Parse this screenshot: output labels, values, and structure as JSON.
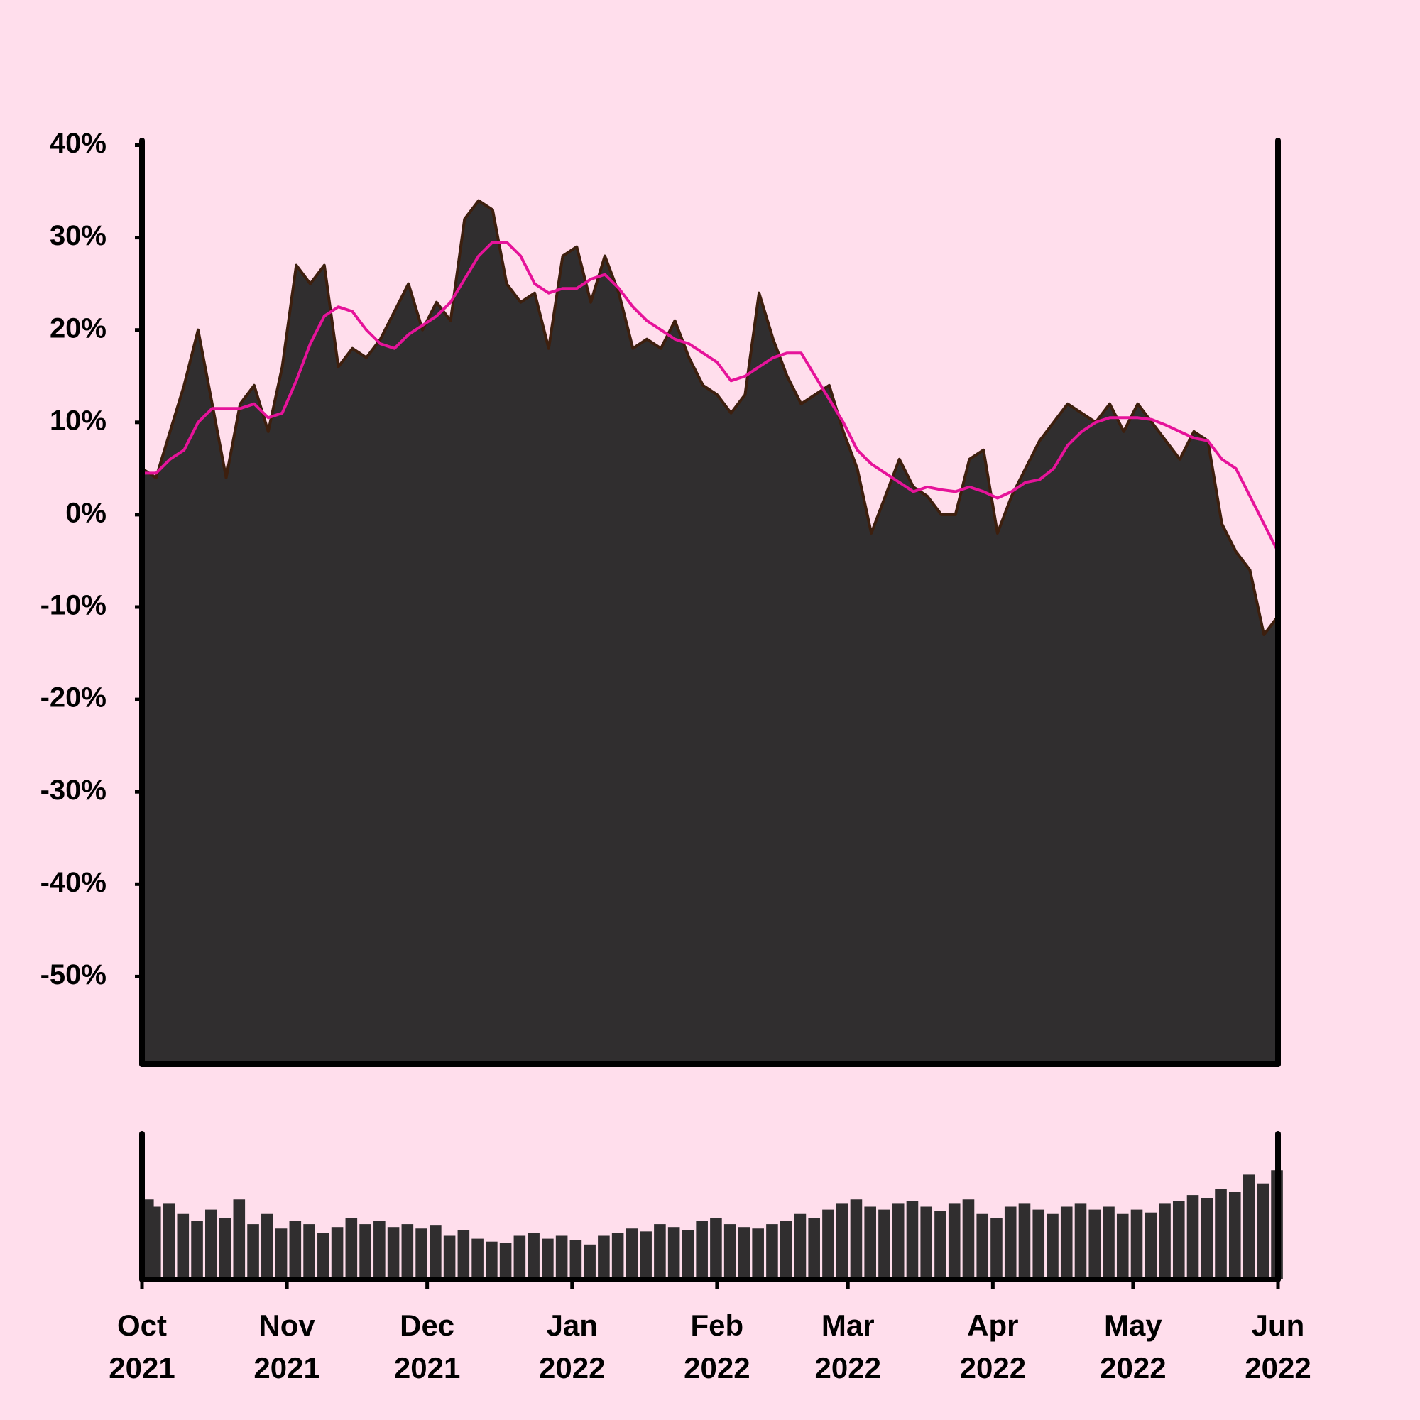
{
  "chart_data": {
    "type": "area",
    "x": [
      0,
      3,
      6,
      9,
      12,
      15,
      18,
      21,
      24,
      27,
      30,
      33,
      36,
      39,
      42,
      45,
      48,
      51,
      54,
      57,
      60,
      63,
      66,
      69,
      72,
      75,
      78,
      81,
      84,
      87,
      90,
      93,
      96,
      99,
      102,
      105,
      108,
      111,
      114,
      117,
      120,
      123,
      126,
      129,
      132,
      135,
      138,
      141,
      144,
      147,
      150,
      153,
      156,
      159,
      162,
      165,
      168,
      171,
      174,
      177,
      180,
      183,
      186,
      189,
      192,
      195,
      198,
      201,
      204,
      207,
      210,
      213,
      216,
      219,
      222,
      225,
      228,
      231,
      234,
      237,
      240,
      243
    ],
    "xlim": [
      0,
      243
    ],
    "xticks": [
      {
        "value": 0,
        "label": "Oct\n2021"
      },
      {
        "value": 31,
        "label": "Nov\n2021"
      },
      {
        "value": 61,
        "label": "Dec\n2021"
      },
      {
        "value": 92,
        "label": "Jan\n2022"
      },
      {
        "value": 123,
        "label": "Feb\n2022"
      },
      {
        "value": 151,
        "label": "Mar\n2022"
      },
      {
        "value": 182,
        "label": "Apr\n2022"
      },
      {
        "value": 212,
        "label": "May\n2022"
      },
      {
        "value": 243,
        "label": "Jun\n2022"
      }
    ],
    "ylim": [
      -59.5,
      40.5
    ],
    "yticks": [
      {
        "value": 40,
        "label": "40%"
      },
      {
        "value": 30,
        "label": "30%"
      },
      {
        "value": 20,
        "label": "20%"
      },
      {
        "value": 10,
        "label": "10%"
      },
      {
        "value": 0,
        "label": "0%"
      },
      {
        "value": -10,
        "label": "-10%"
      },
      {
        "value": -20,
        "label": "-20%"
      },
      {
        "value": -30,
        "label": "-30%"
      },
      {
        "value": -40,
        "label": "-40%"
      },
      {
        "value": -50,
        "label": "-50%"
      }
    ],
    "series": [
      {
        "color": "#302e2f",
        "line_color": "#3d1f0e",
        "values": [
          5,
          4,
          9,
          14,
          20,
          12,
          4,
          12,
          14,
          9,
          16,
          27,
          25,
          27,
          16,
          18,
          17,
          19,
          22,
          25,
          20,
          23,
          21,
          32,
          34,
          33,
          25,
          23,
          24,
          18,
          28,
          29,
          23,
          28,
          24,
          18,
          19,
          18,
          21,
          17,
          14,
          13,
          11,
          13,
          24,
          19,
          15,
          12,
          13,
          14,
          9,
          5,
          -2,
          2,
          6,
          3,
          2,
          0,
          0,
          6,
          7,
          -2,
          2,
          5,
          8,
          10,
          12,
          11,
          10,
          12,
          9,
          12,
          10,
          8,
          6,
          9,
          8,
          -1,
          -4,
          -6,
          -13,
          -11
        ]
      },
      {
        "color": "#e6139a",
        "values": [
          4.5,
          4.5,
          6,
          7,
          10,
          11.5,
          11.5,
          11.5,
          12,
          10.5,
          11,
          14.5,
          18.5,
          21.5,
          22.5,
          22,
          20,
          18.5,
          18,
          19.5,
          20.5,
          21.5,
          23,
          25.5,
          28,
          29.5,
          29.5,
          28,
          25,
          24,
          24.5,
          24.5,
          25.5,
          26,
          24.5,
          22.5,
          21,
          20,
          19,
          18.5,
          17.5,
          16.5,
          14.5,
          15,
          16,
          17,
          17.5,
          17.5,
          15,
          12.5,
          10,
          7,
          5.5,
          4.5,
          3.5,
          2.5,
          3,
          2.7,
          2.5,
          3,
          2.5,
          1.8,
          2.5,
          3.5,
          3.8,
          5,
          7.5,
          9,
          10,
          10.5,
          10.5,
          10.5,
          10.3,
          9.7,
          9,
          8.3,
          8,
          6,
          5,
          2,
          -1,
          -4
        ]
      }
    ],
    "volume": {
      "color": "#302e2f",
      "ylim": [
        0,
        100
      ],
      "values": [
        55,
        50,
        52,
        45,
        40,
        48,
        42,
        55,
        38,
        45,
        35,
        40,
        38,
        32,
        36,
        42,
        38,
        40,
        36,
        38,
        35,
        37,
        30,
        34,
        28,
        26,
        25,
        30,
        32,
        28,
        30,
        27,
        24,
        30,
        32,
        35,
        33,
        38,
        36,
        34,
        40,
        42,
        38,
        36,
        35,
        38,
        40,
        45,
        42,
        48,
        52,
        55,
        50,
        48,
        52,
        54,
        50,
        47,
        52,
        55,
        45,
        42,
        50,
        52,
        48,
        45,
        50,
        52,
        48,
        50,
        45,
        48,
        46,
        52,
        54,
        58,
        56,
        62,
        60,
        72,
        66,
        75
      ]
    }
  }
}
